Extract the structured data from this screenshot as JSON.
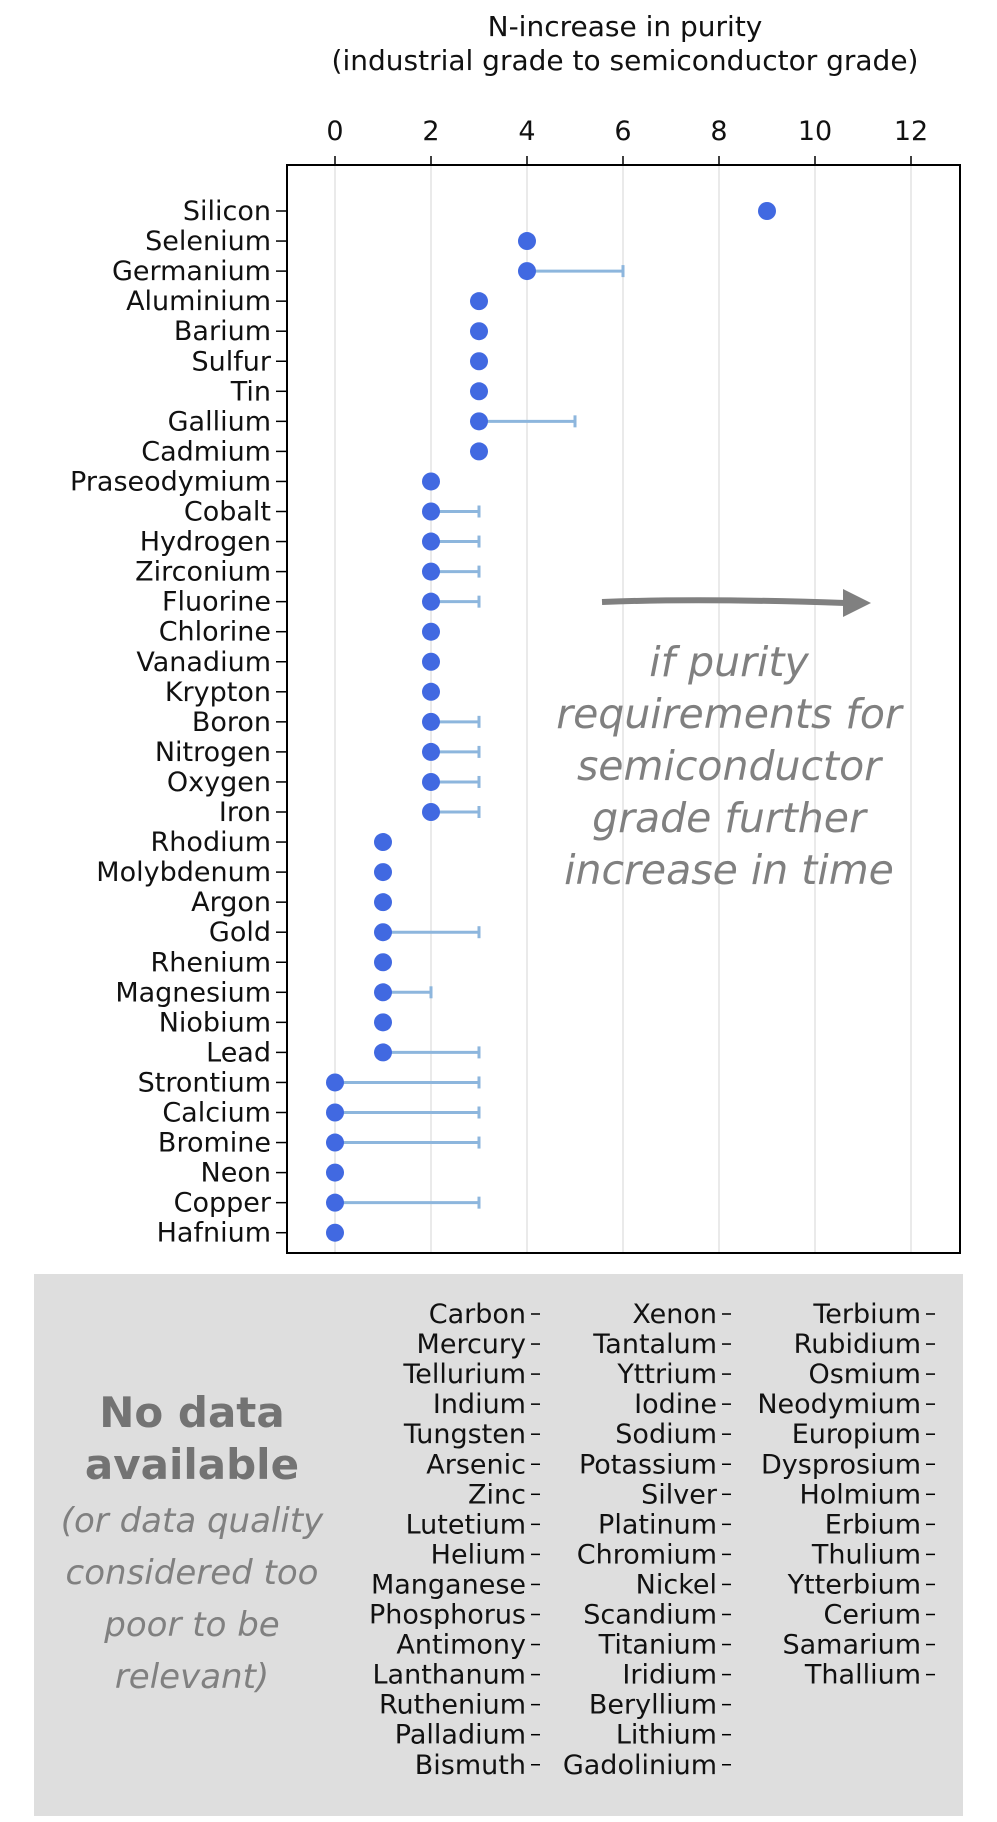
{
  "chart_data": {
    "type": "scatter",
    "title_lines": [
      "N-increase in purity",
      "(industrial grade to semiconductor grade)"
    ],
    "xlim": [
      -1,
      13
    ],
    "xticks": [
      0,
      2,
      4,
      6,
      8,
      10,
      12
    ],
    "grid": "vertical",
    "colors": {
      "point": "#4169e1",
      "errorbar": "#8db6dd",
      "grid": "#e3e3e3",
      "annotation": "#808080",
      "panel": "#dedede"
    },
    "categories": [
      "Silicon",
      "Selenium",
      "Germanium",
      "Aluminium",
      "Barium",
      "Sulfur",
      "Tin",
      "Gallium",
      "Cadmium",
      "Praseodymium",
      "Cobalt",
      "Hydrogen",
      "Zirconium",
      "Fluorine",
      "Chlorine",
      "Vanadium",
      "Krypton",
      "Boron",
      "Nitrogen",
      "Oxygen",
      "Iron",
      "Rhodium",
      "Molybdenum",
      "Argon",
      "Gold",
      "Rhenium",
      "Magnesium",
      "Niobium",
      "Lead",
      "Strontium",
      "Calcium",
      "Bromine",
      "Neon",
      "Copper",
      "Hafnium"
    ],
    "values": [
      9,
      4,
      4,
      3,
      3,
      3,
      3,
      3,
      3,
      2,
      2,
      2,
      2,
      2,
      2,
      2,
      2,
      2,
      2,
      2,
      2,
      1,
      1,
      1,
      1,
      1,
      1,
      1,
      1,
      0,
      0,
      0,
      0,
      0,
      0
    ],
    "upper": [
      null,
      null,
      6,
      null,
      null,
      null,
      null,
      5,
      null,
      null,
      3,
      3,
      3,
      3,
      null,
      null,
      null,
      3,
      3,
      3,
      3,
      null,
      null,
      null,
      3,
      null,
      2,
      null,
      3,
      3,
      3,
      3,
      null,
      3,
      null
    ],
    "annotation_lines": [
      "if purity",
      "requirements for",
      "semiconductor",
      "grade further",
      "increase in time"
    ],
    "no_data": {
      "title_lines": [
        "No data",
        "available"
      ],
      "subtitle_lines": [
        "(or data quality",
        "considered too",
        "poor to be",
        "relevant)"
      ],
      "columns": [
        [
          "Carbon",
          "Mercury",
          "Tellurium",
          "Indium",
          "Tungsten",
          "Arsenic",
          "Zinc",
          "Lutetium",
          "Helium",
          "Manganese",
          "Phosphorus",
          "Antimony",
          "Lanthanum",
          "Ruthenium",
          "Palladium",
          "Bismuth"
        ],
        [
          "Xenon",
          "Tantalum",
          "Yttrium",
          "Iodine",
          "Sodium",
          "Potassium",
          "Silver",
          "Platinum",
          "Chromium",
          "Nickel",
          "Scandium",
          "Titanium",
          "Iridium",
          "Beryllium",
          "Lithium",
          "Gadolinium"
        ],
        [
          "Terbium",
          "Rubidium",
          "Osmium",
          "Neodymium",
          "Europium",
          "Dysprosium",
          "Holmium",
          "Erbium",
          "Thulium",
          "Ytterbium",
          "Cerium",
          "Samarium",
          "Thallium"
        ]
      ]
    }
  }
}
